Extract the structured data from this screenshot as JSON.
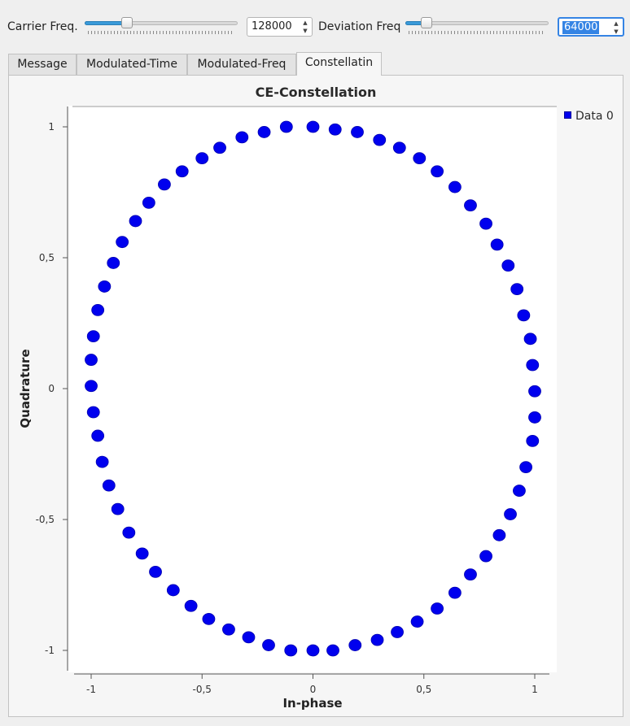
{
  "controls": {
    "carrier": {
      "label": "Carrier Freq.",
      "slider_level": 0.26,
      "value": "128000"
    },
    "deviation": {
      "label": "Deviation Freq",
      "slider_level": 0.12,
      "value": "64000"
    }
  },
  "tabs": [
    {
      "label": "Message",
      "active": false
    },
    {
      "label": "Modulated-Time",
      "active": false
    },
    {
      "label": "Modulated-Freq",
      "active": false
    },
    {
      "label": "Constellatin",
      "active": true
    }
  ],
  "colors": {
    "points": "#0000ee",
    "accent": "#3584e4"
  },
  "chart_data": {
    "type": "scatter",
    "title": "CE-Constellation",
    "xlabel": "In-phase",
    "ylabel": "Quadrature",
    "xlim": [
      -1.1,
      1.1
    ],
    "ylim": [
      -1.05,
      1.05
    ],
    "x_ticks": [
      "-1",
      "-0,5",
      "0",
      "0,5",
      "1"
    ],
    "y_ticks": [
      "1",
      "0,5",
      "0",
      "-0,5",
      "-1"
    ],
    "x_tick_values": [
      -1,
      -0.5,
      0,
      0.5,
      1
    ],
    "y_tick_values": [
      1,
      0.5,
      0,
      -0.5,
      -1
    ],
    "grid": false,
    "legend_position": "top-right",
    "series": [
      {
        "name": "Data 0",
        "color": "#0000ee",
        "x": [
          0.0,
          0.1,
          0.2,
          0.3,
          0.39,
          0.48,
          0.56,
          0.64,
          0.71,
          0.78,
          0.83,
          0.88,
          0.92,
          0.95,
          0.98,
          0.99,
          1.0,
          1.0,
          0.99,
          0.96,
          0.93,
          0.89,
          0.84,
          0.78,
          0.71,
          0.64,
          0.56,
          0.47,
          0.38,
          0.29,
          0.19,
          0.09,
          0.0,
          -0.1,
          -0.2,
          -0.29,
          -0.38,
          -0.47,
          -0.55,
          -0.63,
          -0.71,
          -0.77,
          -0.83,
          -0.88,
          -0.92,
          -0.95,
          -0.97,
          -0.99,
          -1.0,
          -1.0,
          -0.99,
          -0.97,
          -0.94,
          -0.9,
          -0.86,
          -0.8,
          -0.74,
          -0.67,
          -0.59,
          -0.5,
          -0.42,
          -0.32,
          -0.22,
          -0.12
        ],
        "y": [
          1.0,
          0.99,
          0.98,
          0.95,
          0.92,
          0.88,
          0.83,
          0.77,
          0.7,
          0.63,
          0.55,
          0.47,
          0.38,
          0.28,
          0.19,
          0.09,
          -0.01,
          -0.11,
          -0.2,
          -0.3,
          -0.39,
          -0.48,
          -0.56,
          -0.64,
          -0.71,
          -0.78,
          -0.84,
          -0.89,
          -0.93,
          -0.96,
          -0.98,
          -1.0,
          -1.0,
          -1.0,
          -0.98,
          -0.95,
          -0.92,
          -0.88,
          -0.83,
          -0.77,
          -0.7,
          -0.63,
          -0.55,
          -0.46,
          -0.37,
          -0.28,
          -0.18,
          -0.09,
          0.01,
          0.11,
          0.2,
          0.3,
          0.39,
          0.48,
          0.56,
          0.64,
          0.71,
          0.78,
          0.83,
          0.88,
          0.92,
          0.96,
          0.98,
          1.0
        ]
      }
    ]
  }
}
